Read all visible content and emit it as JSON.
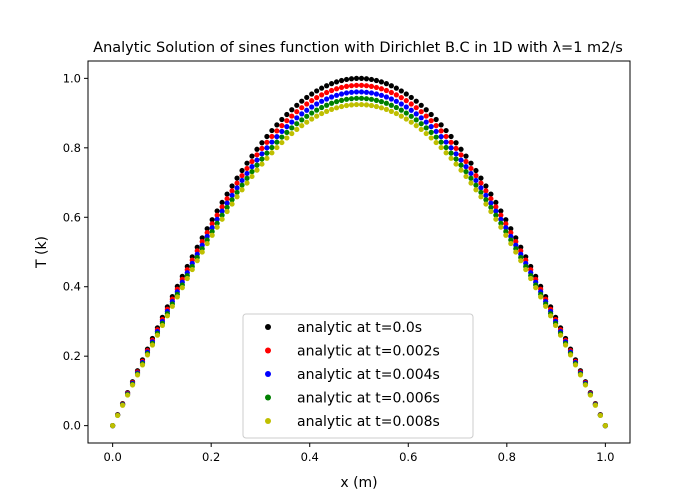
{
  "chart_data": {
    "type": "scatter",
    "title": "Analytic Solution of sines function with Dirichlet B.C in 1D with λ=1 m2/s",
    "xlabel": "x (m)",
    "ylabel": "T (k)",
    "xlim": [
      -0.05,
      1.05
    ],
    "ylim": [
      -0.05,
      1.05
    ],
    "x_ticks": [
      0.0,
      0.2,
      0.4,
      0.6,
      0.8,
      1.0
    ],
    "y_ticks": [
      0.0,
      0.2,
      0.4,
      0.6,
      0.8,
      1.0
    ],
    "x_tick_labels": [
      "0.0",
      "0.2",
      "0.4",
      "0.6",
      "0.8",
      "1.0"
    ],
    "y_tick_labels": [
      "0.0",
      "0.2",
      "0.4",
      "0.6",
      "0.8",
      "1.0"
    ],
    "grid": false,
    "legend_position": "lower center",
    "x": [
      0.0,
      0.0101,
      0.0202,
      0.0303,
      0.0404,
      0.0505,
      0.0606,
      0.0707,
      0.0808,
      0.0909,
      0.101,
      0.1111,
      0.1212,
      0.1313,
      0.1414,
      0.1515,
      0.1616,
      0.1717,
      0.1818,
      0.1919,
      0.202,
      0.2121,
      0.2222,
      0.2323,
      0.2424,
      0.2525,
      0.2626,
      0.2727,
      0.2828,
      0.2929,
      0.303,
      0.3131,
      0.3232,
      0.3333,
      0.3434,
      0.3535,
      0.3636,
      0.3737,
      0.3838,
      0.3939,
      0.404,
      0.4141,
      0.4242,
      0.4343,
      0.4444,
      0.4545,
      0.4646,
      0.4747,
      0.4848,
      0.4949,
      0.5051,
      0.5152,
      0.5253,
      0.5354,
      0.5455,
      0.5556,
      0.5657,
      0.5758,
      0.5859,
      0.596,
      0.6061,
      0.6162,
      0.6263,
      0.6364,
      0.6465,
      0.6566,
      0.6667,
      0.6768,
      0.6869,
      0.697,
      0.7071,
      0.7172,
      0.7273,
      0.7374,
      0.7475,
      0.7576,
      0.7677,
      0.7778,
      0.7879,
      0.798,
      0.8081,
      0.8182,
      0.8283,
      0.8384,
      0.8485,
      0.8586,
      0.8687,
      0.8788,
      0.8889,
      0.899,
      0.9091,
      0.9192,
      0.9293,
      0.9394,
      0.9495,
      0.9596,
      0.9697,
      0.9798,
      0.9899,
      1.0
    ],
    "series": [
      {
        "name": "analytic at t=0.0s",
        "color": "#000000",
        "values": [
          0.0,
          0.0317,
          0.0634,
          0.0951,
          0.1266,
          0.158,
          0.1893,
          0.2203,
          0.2511,
          0.2817,
          0.312,
          0.342,
          0.3717,
          0.4009,
          0.4298,
          0.4582,
          0.4862,
          0.5137,
          0.5406,
          0.5671,
          0.5929,
          0.6182,
          0.6428,
          0.6668,
          0.6901,
          0.7127,
          0.7346,
          0.7557,
          0.7761,
          0.7958,
          0.8146,
          0.8326,
          0.8497,
          0.866,
          0.8815,
          0.896,
          0.9096,
          0.9224,
          0.9342,
          0.945,
          0.9549,
          0.9638,
          0.9718,
          0.9788,
          0.9848,
          0.9898,
          0.9938,
          0.9969,
          0.9989,
          0.9999,
          0.9999,
          0.9989,
          0.9969,
          0.9938,
          0.9898,
          0.9848,
          0.9788,
          0.9718,
          0.9638,
          0.9549,
          0.945,
          0.9342,
          0.9224,
          0.9096,
          0.896,
          0.8815,
          0.866,
          0.8497,
          0.8326,
          0.8146,
          0.7958,
          0.7761,
          0.7557,
          0.7346,
          0.7127,
          0.6901,
          0.6668,
          0.6428,
          0.6182,
          0.5929,
          0.5671,
          0.5406,
          0.5137,
          0.4862,
          0.4582,
          0.4298,
          0.4009,
          0.3717,
          0.342,
          0.312,
          0.2817,
          0.2511,
          0.2203,
          0.1893,
          0.158,
          0.1266,
          0.0951,
          0.0634,
          0.0317,
          0.0
        ]
      },
      {
        "name": "analytic at t=0.002s",
        "color": "#ff0000",
        "values": [
          0.0,
          0.0311,
          0.0622,
          0.0932,
          0.1241,
          0.1549,
          0.1855,
          0.2159,
          0.2461,
          0.2761,
          0.3057,
          0.3352,
          0.3642,
          0.3929,
          0.4212,
          0.4491,
          0.4765,
          0.5034,
          0.5298,
          0.5557,
          0.5811,
          0.6058,
          0.63,
          0.6535,
          0.6763,
          0.6985,
          0.7199,
          0.7406,
          0.7606,
          0.7799,
          0.7983,
          0.8159,
          0.8327,
          0.8487,
          0.8639,
          0.8781,
          0.8914,
          0.904,
          0.9155,
          0.9261,
          0.9358,
          0.9445,
          0.9524,
          0.9592,
          0.9651,
          0.97,
          0.9739,
          0.977,
          0.9789,
          0.9799,
          0.9799,
          0.9789,
          0.977,
          0.9739,
          0.97,
          0.9651,
          0.9592,
          0.9524,
          0.9445,
          0.9358,
          0.9261,
          0.9155,
          0.904,
          0.8914,
          0.8781,
          0.8639,
          0.8487,
          0.8327,
          0.8159,
          0.7983,
          0.7799,
          0.7606,
          0.7406,
          0.7199,
          0.6985,
          0.6763,
          0.6535,
          0.63,
          0.6058,
          0.5811,
          0.5557,
          0.5298,
          0.5034,
          0.4765,
          0.4491,
          0.4212,
          0.3929,
          0.3642,
          0.3352,
          0.3057,
          0.2761,
          0.2461,
          0.2159,
          0.1855,
          0.1549,
          0.1241,
          0.0932,
          0.0622,
          0.0311,
          0.0
        ]
      },
      {
        "name": "analytic at t=0.004s",
        "color": "#0000ff",
        "values": [
          0.0,
          0.0305,
          0.061,
          0.0914,
          0.1217,
          0.1518,
          0.1819,
          0.2117,
          0.2413,
          0.2707,
          0.2998,
          0.3287,
          0.3572,
          0.3853,
          0.413,
          0.4403,
          0.4672,
          0.4937,
          0.5195,
          0.545,
          0.5698,
          0.5941,
          0.6177,
          0.6408,
          0.6632,
          0.6849,
          0.706,
          0.7262,
          0.7458,
          0.7647,
          0.7828,
          0.8001,
          0.8165,
          0.8322,
          0.8471,
          0.8611,
          0.8741,
          0.8864,
          0.8977,
          0.9081,
          0.9176,
          0.9262,
          0.9339,
          0.9406,
          0.9464,
          0.9512,
          0.955,
          0.958,
          0.9599,
          0.9609,
          0.9609,
          0.9599,
          0.958,
          0.955,
          0.9512,
          0.9464,
          0.9406,
          0.9339,
          0.9262,
          0.9176,
          0.9081,
          0.8977,
          0.8864,
          0.8741,
          0.8611,
          0.8471,
          0.8322,
          0.8165,
          0.8001,
          0.7828,
          0.7647,
          0.7458,
          0.7262,
          0.706,
          0.6849,
          0.6632,
          0.6408,
          0.6177,
          0.5941,
          0.5698,
          0.545,
          0.5195,
          0.4937,
          0.4672,
          0.4403,
          0.413,
          0.3853,
          0.3572,
          0.3287,
          0.2998,
          0.2707,
          0.2413,
          0.2117,
          0.1819,
          0.1518,
          0.1217,
          0.0914,
          0.061,
          0.0305,
          0.0
        ]
      },
      {
        "name": "analytic at t=0.006s",
        "color": "#008000",
        "values": [
          0.0,
          0.0299,
          0.0598,
          0.0897,
          0.1194,
          0.1489,
          0.1784,
          0.2076,
          0.2367,
          0.2655,
          0.2941,
          0.3224,
          0.3503,
          0.3779,
          0.4051,
          0.4319,
          0.4583,
          0.4842,
          0.5095,
          0.5345,
          0.5589,
          0.5827,
          0.6059,
          0.6285,
          0.6505,
          0.6718,
          0.6924,
          0.7123,
          0.7315,
          0.7501,
          0.7678,
          0.7848,
          0.8009,
          0.8163,
          0.8309,
          0.8445,
          0.8574,
          0.8694,
          0.8805,
          0.8907,
          0.9001,
          0.9085,
          0.916,
          0.9226,
          0.9283,
          0.933,
          0.9367,
          0.9397,
          0.9415,
          0.9425,
          0.9425,
          0.9415,
          0.9397,
          0.9367,
          0.933,
          0.9283,
          0.9226,
          0.916,
          0.9085,
          0.9001,
          0.8907,
          0.8805,
          0.8694,
          0.8574,
          0.8445,
          0.8309,
          0.8163,
          0.8009,
          0.7848,
          0.7678,
          0.7501,
          0.7315,
          0.7123,
          0.6924,
          0.6718,
          0.6505,
          0.6285,
          0.6059,
          0.5827,
          0.5589,
          0.5345,
          0.5095,
          0.4842,
          0.4583,
          0.4319,
          0.4051,
          0.3779,
          0.3503,
          0.3224,
          0.2941,
          0.2655,
          0.2367,
          0.2076,
          0.1784,
          0.1489,
          0.1194,
          0.0897,
          0.0598,
          0.0299,
          0.0
        ]
      },
      {
        "name": "analytic at t=0.008s",
        "color": "#bfbf00",
        "values": [
          0.0,
          0.0293,
          0.0587,
          0.088,
          0.1171,
          0.1461,
          0.175,
          0.2037,
          0.2322,
          0.2604,
          0.2885,
          0.3162,
          0.3436,
          0.3707,
          0.3974,
          0.4237,
          0.4495,
          0.475,
          0.4998,
          0.5243,
          0.5482,
          0.5716,
          0.5944,
          0.6166,
          0.6381,
          0.659,
          0.6792,
          0.6987,
          0.7176,
          0.7358,
          0.7532,
          0.7698,
          0.7857,
          0.8007,
          0.8151,
          0.8285,
          0.8411,
          0.8529,
          0.8638,
          0.8738,
          0.8829,
          0.8912,
          0.8986,
          0.905,
          0.9106,
          0.9152,
          0.9189,
          0.9218,
          0.9236,
          0.9245,
          0.9245,
          0.9236,
          0.9218,
          0.9189,
          0.9152,
          0.9106,
          0.905,
          0.8986,
          0.8912,
          0.8829,
          0.8738,
          0.8638,
          0.8529,
          0.8411,
          0.8285,
          0.8151,
          0.8007,
          0.7857,
          0.7698,
          0.7532,
          0.7358,
          0.7176,
          0.6987,
          0.6792,
          0.659,
          0.6381,
          0.6166,
          0.5944,
          0.5716,
          0.5482,
          0.5243,
          0.4998,
          0.475,
          0.4495,
          0.4237,
          0.3974,
          0.3707,
          0.3436,
          0.3162,
          0.2885,
          0.2604,
          0.2322,
          0.2037,
          0.175,
          0.1461,
          0.1171,
          0.088,
          0.0587,
          0.0293,
          0.0
        ]
      }
    ]
  }
}
